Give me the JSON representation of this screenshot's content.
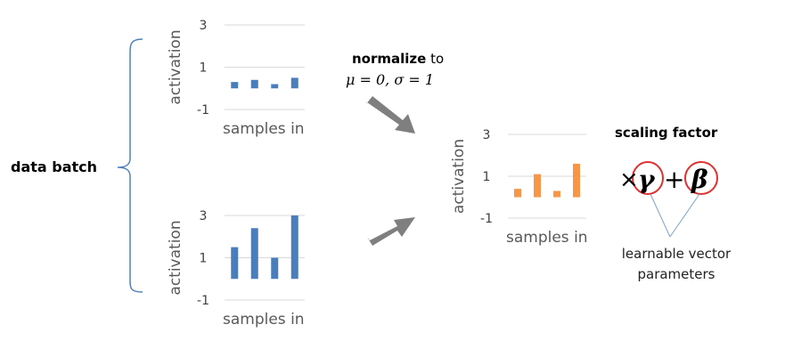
{
  "labels": {
    "data_batch": "data batch",
    "normalize_bold": "normalize",
    "normalize_rest": " to",
    "normalize_formula": "μ = 0, σ = 1",
    "scaling_factor": "scaling factor",
    "learnable_line1": "learnable vector",
    "learnable_line2": "parameters",
    "times_symbol": "×",
    "gamma": "γ",
    "plus_symbol": "+",
    "beta": "β"
  },
  "colors": {
    "blue": "#4a7ebb",
    "orange": "#f79646",
    "brace": "#4f81bd",
    "arrow": "#7f7f7f",
    "circle": "#e03030",
    "grid": "#d9d9d9",
    "callout": "#7ba3d1"
  },
  "chart_data": [
    {
      "type": "bar",
      "ylabel": "activation",
      "xlabel": "samples in",
      "yticks": [
        "3",
        "1",
        "-1"
      ],
      "ylim": [
        -1,
        3
      ],
      "values": [
        0.3,
        0.4,
        0.2,
        0.5
      ],
      "color": "#4a7ebb"
    },
    {
      "type": "bar",
      "ylabel": "activation",
      "xlabel": "samples in",
      "yticks": [
        "3",
        "1",
        "-1"
      ],
      "ylim": [
        -1,
        3
      ],
      "values": [
        1.5,
        2.4,
        1.0,
        3.0
      ],
      "color": "#4a7ebb"
    },
    {
      "type": "bar",
      "ylabel": "activation",
      "xlabel": "samples in",
      "yticks": [
        "3",
        "1",
        "-1"
      ],
      "ylim": [
        -1,
        3
      ],
      "values": [
        0.4,
        1.1,
        0.3,
        1.6
      ],
      "color": "#f79646"
    }
  ]
}
